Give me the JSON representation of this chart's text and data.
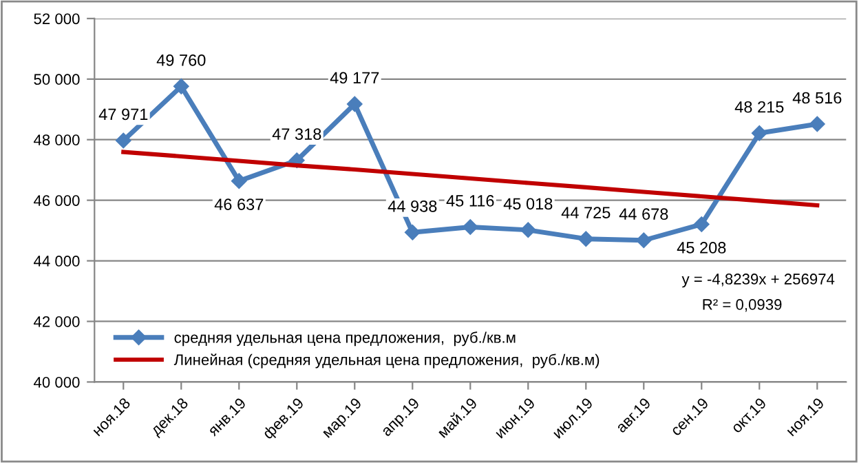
{
  "chart_data": {
    "type": "line",
    "categories": [
      "ноя.18",
      "дек.18",
      "янв.19",
      "фев.19",
      "мар.19",
      "апр.19",
      "май.19",
      "июн.19",
      "июл.19",
      "авг.19",
      "сен.19",
      "окт.19",
      "ноя.19"
    ],
    "series": [
      {
        "name": "средняя удельная цена предложения,  руб./кв.м",
        "color": "#4a7ebb",
        "marker": "diamond",
        "values": [
          47971,
          49760,
          46637,
          47318,
          49177,
          44938,
          45116,
          45018,
          44725,
          44678,
          45208,
          48215,
          48516
        ],
        "value_labels": [
          "47 971",
          "49 760",
          "46 637",
          "47 318",
          "49 177",
          "44 938",
          "45 116",
          "45 018",
          "44 725",
          "44 678",
          "45 208",
          "48 215",
          "48 516"
        ]
      },
      {
        "name": "Линейная (средняя удельная цена предложения,  руб./кв.м)",
        "color": "#c00000",
        "marker": "none",
        "values": [
          47594,
          47449,
          47300,
          47150,
          47015,
          46866,
          46721,
          46571,
          46427,
          46277,
          46128,
          45983,
          45834
        ]
      }
    ],
    "ylim": [
      40000,
      52000
    ],
    "yticks": [
      {
        "value": 40000,
        "label": "40 000"
      },
      {
        "value": 42000,
        "label": "42 000"
      },
      {
        "value": 44000,
        "label": "44 000"
      },
      {
        "value": 46000,
        "label": "46 000"
      },
      {
        "value": 48000,
        "label": "48 000"
      },
      {
        "value": 50000,
        "label": "50 000"
      },
      {
        "value": 52000,
        "label": "52 000"
      }
    ],
    "grid": "y",
    "legend": "bottom left",
    "line_style": "solid",
    "annotations": [
      "y = -4,8239x + 256974",
      "R² = 0,0939"
    ]
  }
}
